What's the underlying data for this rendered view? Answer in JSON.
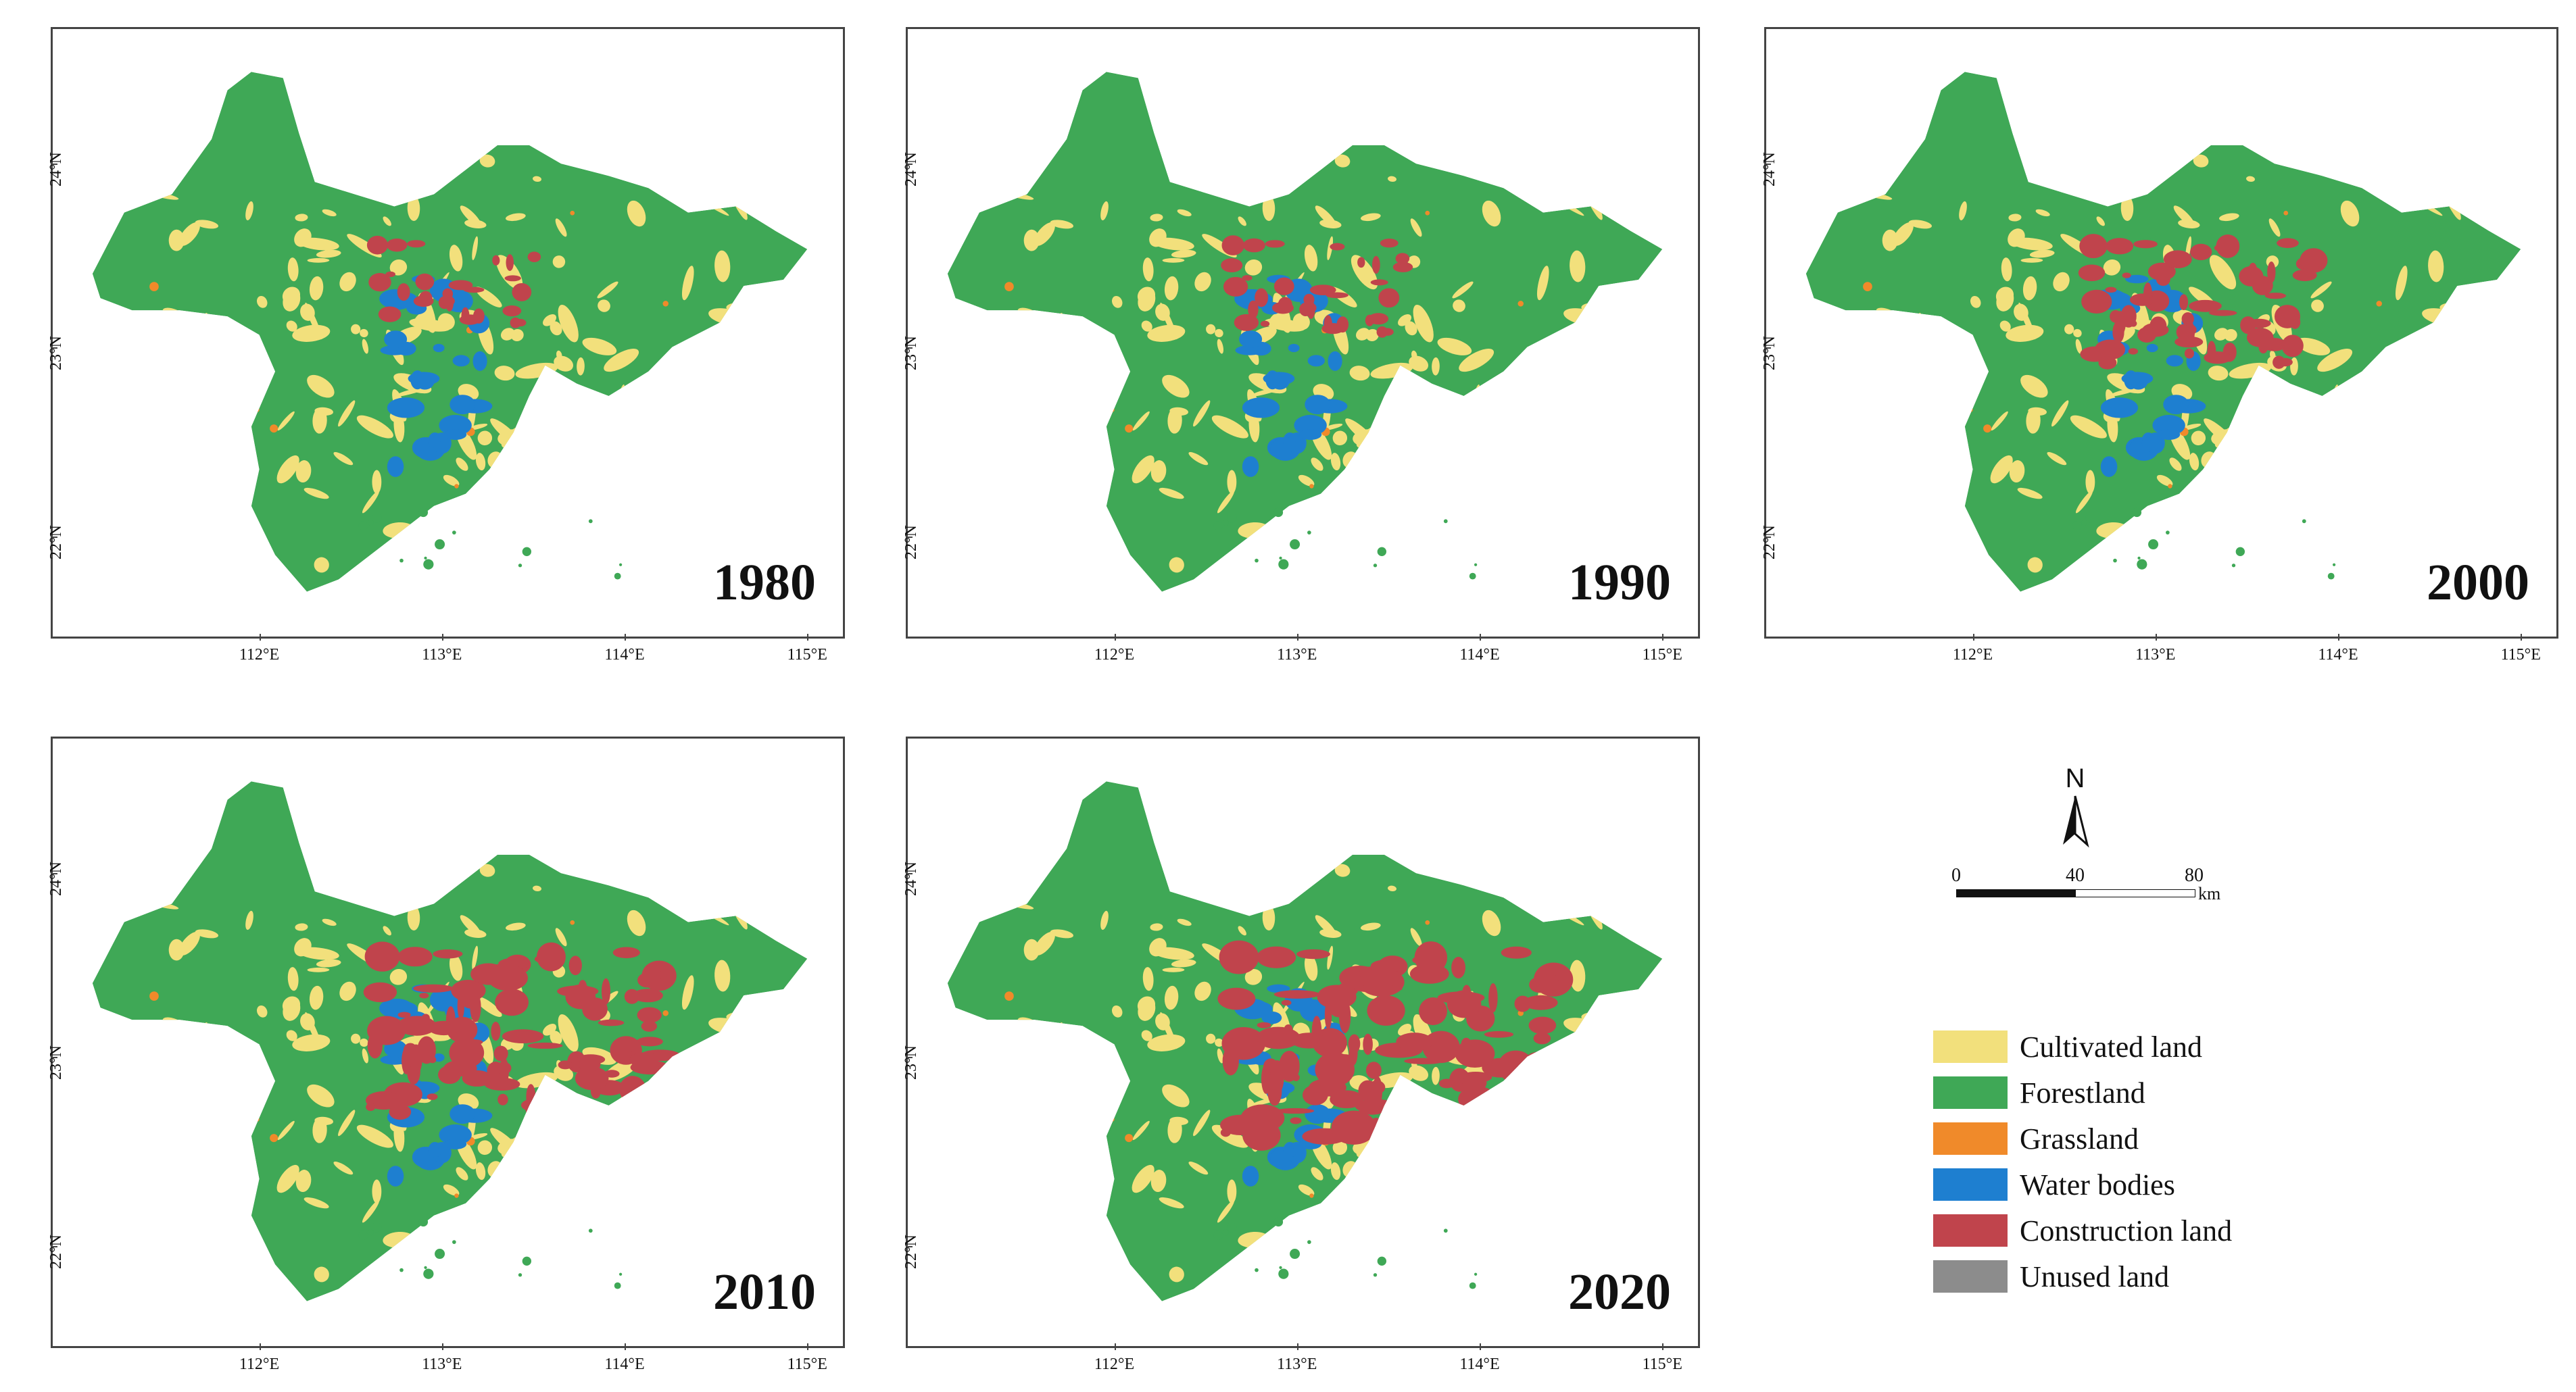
{
  "panels": [
    {
      "year": "1980",
      "urban": 0.15
    },
    {
      "year": "1990",
      "urban": 0.22
    },
    {
      "year": "2000",
      "urban": 0.45
    },
    {
      "year": "2010",
      "urban": 0.75
    },
    {
      "year": "2020",
      "urban": 0.95
    }
  ],
  "lat_labels": [
    "24°N",
    "23°N",
    "22°N"
  ],
  "lon_labels": [
    "112°E",
    "113°E",
    "114°E",
    "115°E"
  ],
  "north_label": "N",
  "scale": {
    "ticks": [
      "0",
      "40",
      "80"
    ],
    "unit": "km"
  },
  "legend": [
    {
      "label": "Cultivated land",
      "color": "#f2e07c"
    },
    {
      "label": "Forestland",
      "color": "#3fa856"
    },
    {
      "label": "Grassland",
      "color": "#f08a2a"
    },
    {
      "label": "Water bodies",
      "color": "#1e7fd0"
    },
    {
      "label": "Construction land",
      "color": "#c0444c"
    },
    {
      "label": "Unused land",
      "color": "#8c8c8c"
    }
  ]
}
